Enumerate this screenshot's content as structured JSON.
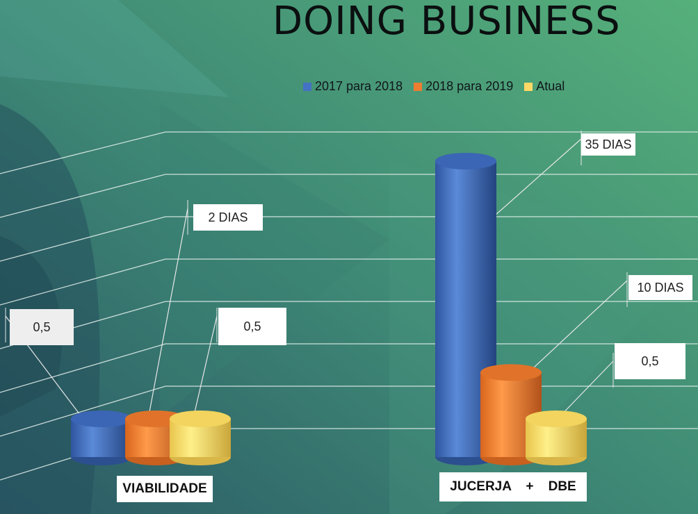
{
  "chart_data": {
    "type": "bar",
    "title": "DOING BUSINESS",
    "categories": [
      "VIABILIDADE",
      "JUCERJA    +    DBE"
    ],
    "series": [
      {
        "name": "2017 para 2018",
        "values": [
          0.5,
          35
        ]
      },
      {
        "name": "2018 para 2019",
        "values": [
          2,
          10
        ]
      },
      {
        "name": "Atual",
        "values": [
          0.5,
          0.5
        ]
      }
    ],
    "data_labels": [
      [
        "0,5",
        "35 DIAS"
      ],
      [
        "2 DIAS",
        "10 DIAS"
      ],
      [
        "0,5",
        "0,5"
      ]
    ],
    "legend_position": "top",
    "grid": true,
    "style": "3d-cylinder"
  },
  "colors": {
    "series": [
      "#4472c4",
      "#ed7d31",
      "#ffd966"
    ],
    "background_dark": "#2d5f6b",
    "background_light": "#55ad78"
  }
}
